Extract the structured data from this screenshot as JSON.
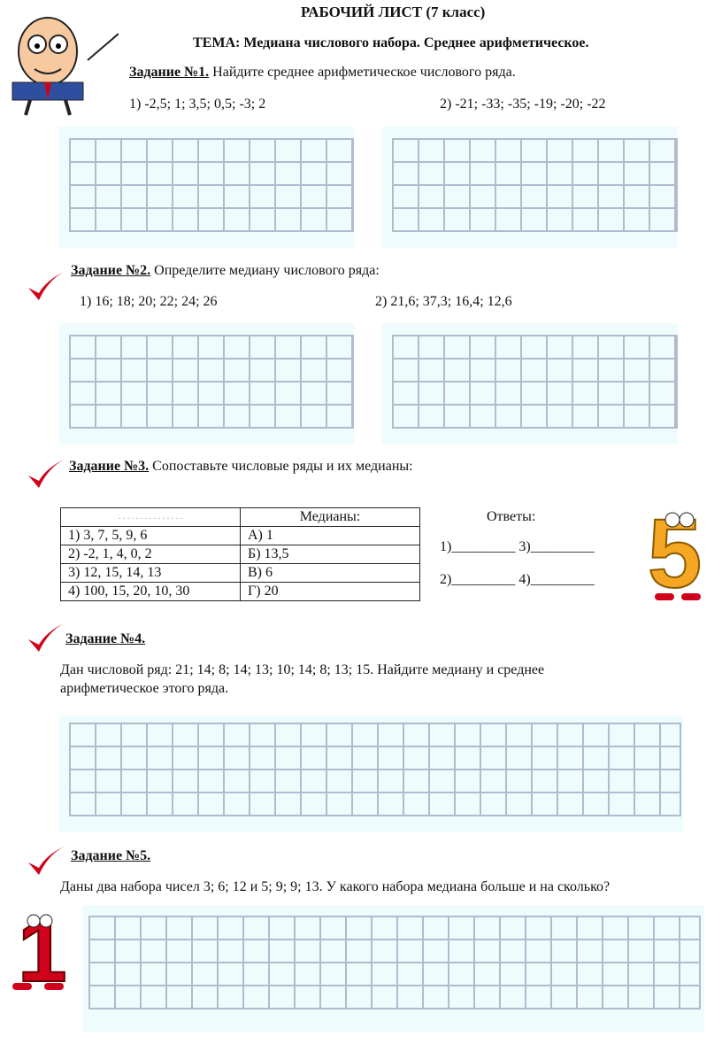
{
  "title": "РАБОЧИЙ ЛИСТ (7 класс)",
  "topic": "ТЕМА: Медиана числового набора. Среднее арифметическое.",
  "task1": {
    "label": "Задание №1.",
    "text": " Найдите среднее арифметическое числового ряда.",
    "item1": "1)    -2,5; 1; 3,5; 0,5; -3; 2",
    "item2": "2) -21; -33; -35; -19; -20; -22"
  },
  "task2": {
    "label": "Задание №2.",
    "text": " Определите медиану числового ряда:",
    "item1": "1)    16; 18; 20; 22; 24; 26",
    "item2": "2) 21,6; 37,3; 16,4; 12,6"
  },
  "task3": {
    "label": "Задание №3.",
    "text": " Сопоставьте числовые ряды и их медианы:",
    "table": {
      "header": [
        ". .  . . . . . . . .  . . . .  .",
        "Медианы:"
      ],
      "rows": [
        [
          "1) 3, 7, 5, 9, 6",
          "А) 1"
        ],
        [
          "2) -2, 1, 4, 0, 2",
          "Б) 13,5"
        ],
        [
          "3)  12, 15, 14, 13",
          "В) 6"
        ],
        [
          "4) 100, 15, 20, 10, 30",
          "Г) 20"
        ]
      ]
    },
    "answers_label": "Ответы:",
    "answer_line1": "1)_________ 3)_________",
    "answer_line2": "2)_________ 4)_________"
  },
  "task4": {
    "label": "Задание №4.",
    "line1": "Дан числовой ряд: 21; 14; 8; 14; 13; 10; 14; 8; 13; 15. Найдите медиану и среднее",
    "line2": "арифметическое этого ряда."
  },
  "task5": {
    "label": "Задание №5.",
    "text": "Даны два набора чисел 3; 6; 12 и 5; 9; 9; 13. У какого набора медиана больше и на сколько?"
  },
  "colors": {
    "check": "#d0021b",
    "grid_line": "#b0bccd",
    "grid_bg": "#eefcfd"
  }
}
